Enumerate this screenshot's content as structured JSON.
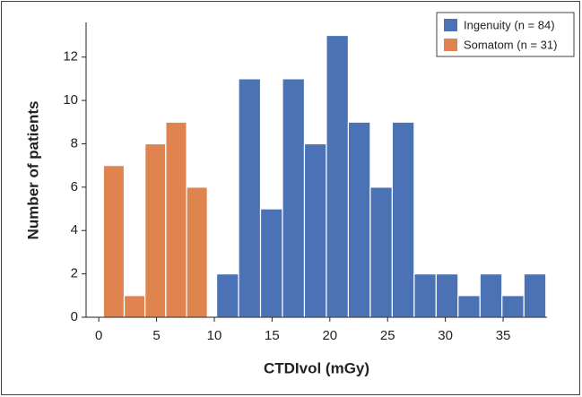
{
  "chart_data": {
    "type": "histogram",
    "xlabel": "CTDIvol (mGy)",
    "ylabel": "Number of patients",
    "series": [
      {
        "name": "Ingenuity (n = 84)",
        "color": "#4a72b5",
        "bins": [
          10.2,
          12.1,
          14.0,
          15.9,
          17.8,
          19.7,
          21.6,
          23.5,
          25.4,
          27.3,
          29.2,
          31.1,
          33.0,
          34.9,
          36.8,
          38.7
        ],
        "values": [
          2,
          11,
          5,
          11,
          8,
          13,
          9,
          6,
          9,
          2,
          2,
          1,
          2,
          1,
          2
        ]
      },
      {
        "name": "Somatom (n = 31)",
        "color": "#e0844f",
        "bins": [
          0.4,
          2.2,
          4.0,
          5.8,
          7.6,
          9.4
        ],
        "values": [
          7,
          1,
          8,
          9,
          6
        ]
      }
    ],
    "xlim": [
      -1.1,
      38.8
    ],
    "xticks": [
      0,
      5,
      10,
      15,
      20,
      25,
      30,
      35
    ],
    "ylim": [
      0,
      13.6
    ],
    "yticks": [
      0,
      2,
      4,
      6,
      8,
      10,
      12
    ],
    "legend": "upper right",
    "grid": false
  }
}
